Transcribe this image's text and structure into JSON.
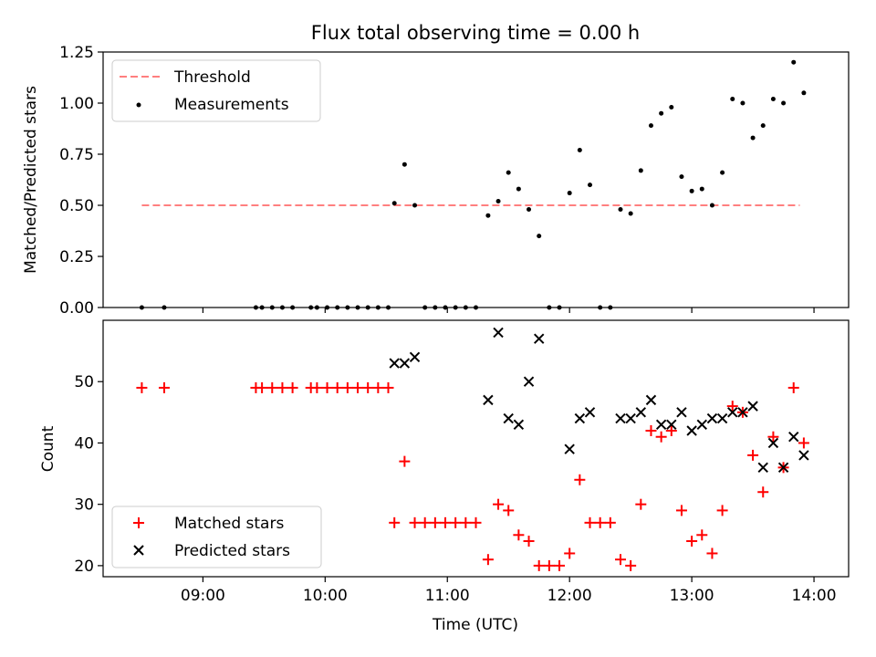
{
  "chart_data": [
    {
      "type": "scatter",
      "title": "Flux total observing time = 0.00 h",
      "xlabel": "",
      "ylabel": "Matched/Predicted stars",
      "ylim": [
        0,
        1.25
      ],
      "yticks": [
        "0.00",
        "0.25",
        "0.50",
        "0.75",
        "1.00",
        "1.25"
      ],
      "legend_position": "top-left",
      "threshold": {
        "name": "Threshold",
        "value": 0.5,
        "x_start": "08:30",
        "x_end": "13:53",
        "color": "#ff7f7f",
        "style": "dashed"
      },
      "series": [
        {
          "name": "Measurements",
          "color": "#000000",
          "marker": "dot",
          "points": [
            [
              "08:30",
              0.0
            ],
            [
              "08:41",
              0.0
            ],
            [
              "09:26",
              0.0
            ],
            [
              "09:29",
              0.0
            ],
            [
              "09:34",
              0.0
            ],
            [
              "09:39",
              0.0
            ],
            [
              "09:44",
              0.0
            ],
            [
              "09:53",
              0.0
            ],
            [
              "09:56",
              0.0
            ],
            [
              "10:01",
              0.0
            ],
            [
              "10:06",
              0.0
            ],
            [
              "10:11",
              0.0
            ],
            [
              "10:16",
              0.0
            ],
            [
              "10:21",
              0.0
            ],
            [
              "10:26",
              0.0
            ],
            [
              "10:31",
              0.0
            ],
            [
              "10:34",
              0.51
            ],
            [
              "10:39",
              0.7
            ],
            [
              "10:44",
              0.5
            ],
            [
              "10:49",
              0.0
            ],
            [
              "10:54",
              0.0
            ],
            [
              "10:59",
              0.0
            ],
            [
              "11:04",
              0.0
            ],
            [
              "11:09",
              0.0
            ],
            [
              "11:14",
              0.0
            ],
            [
              "11:20",
              0.45
            ],
            [
              "11:25",
              0.52
            ],
            [
              "11:30",
              0.66
            ],
            [
              "11:35",
              0.58
            ],
            [
              "11:40",
              0.48
            ],
            [
              "11:45",
              0.35
            ],
            [
              "11:50",
              0.0
            ],
            [
              "11:55",
              0.0
            ],
            [
              "12:00",
              0.56
            ],
            [
              "12:05",
              0.77
            ],
            [
              "12:10",
              0.6
            ],
            [
              "12:15",
              0.0
            ],
            [
              "12:20",
              0.0
            ],
            [
              "12:25",
              0.48
            ],
            [
              "12:30",
              0.46
            ],
            [
              "12:35",
              0.67
            ],
            [
              "12:40",
              0.89
            ],
            [
              "12:45",
              0.95
            ],
            [
              "12:50",
              0.98
            ],
            [
              "12:55",
              0.64
            ],
            [
              "13:00",
              0.57
            ],
            [
              "13:05",
              0.58
            ],
            [
              "13:10",
              0.5
            ],
            [
              "13:15",
              0.66
            ],
            [
              "13:20",
              1.02
            ],
            [
              "13:25",
              1.0
            ],
            [
              "13:30",
              0.83
            ],
            [
              "13:35",
              0.89
            ],
            [
              "13:40",
              1.02
            ],
            [
              "13:45",
              1.0
            ],
            [
              "13:50",
              1.2
            ],
            [
              "13:55",
              1.05
            ]
          ]
        }
      ]
    },
    {
      "type": "scatter",
      "title": "",
      "xlabel": "Time (UTC)",
      "ylabel": "Count",
      "ylim": [
        18.2,
        60.0
      ],
      "yticks": [
        "20",
        "30",
        "40",
        "50"
      ],
      "xlim": [
        "08:11",
        "14:17"
      ],
      "xticks": [
        "09:00",
        "10:00",
        "11:00",
        "12:00",
        "13:00",
        "14:00"
      ],
      "legend_position": "bottom-left",
      "series": [
        {
          "name": "Matched stars",
          "color": "#ff0000",
          "marker": "plus",
          "points": [
            [
              "08:30",
              49
            ],
            [
              "08:41",
              49
            ],
            [
              "09:26",
              49
            ],
            [
              "09:29",
              49
            ],
            [
              "09:34",
              49
            ],
            [
              "09:39",
              49
            ],
            [
              "09:44",
              49
            ],
            [
              "09:53",
              49
            ],
            [
              "09:56",
              49
            ],
            [
              "10:01",
              49
            ],
            [
              "10:06",
              49
            ],
            [
              "10:11",
              49
            ],
            [
              "10:16",
              49
            ],
            [
              "10:21",
              49
            ],
            [
              "10:26",
              49
            ],
            [
              "10:31",
              49
            ],
            [
              "10:34",
              27
            ],
            [
              "10:39",
              37
            ],
            [
              "10:44",
              27
            ],
            [
              "10:49",
              27
            ],
            [
              "10:54",
              27
            ],
            [
              "10:59",
              27
            ],
            [
              "11:04",
              27
            ],
            [
              "11:09",
              27
            ],
            [
              "11:14",
              27
            ],
            [
              "11:20",
              21
            ],
            [
              "11:25",
              30
            ],
            [
              "11:30",
              29
            ],
            [
              "11:35",
              25
            ],
            [
              "11:40",
              24
            ],
            [
              "11:45",
              20
            ],
            [
              "11:50",
              20
            ],
            [
              "11:55",
              20
            ],
            [
              "12:00",
              22
            ],
            [
              "12:05",
              34
            ],
            [
              "12:10",
              27
            ],
            [
              "12:15",
              27
            ],
            [
              "12:20",
              27
            ],
            [
              "12:25",
              21
            ],
            [
              "12:30",
              20
            ],
            [
              "12:35",
              30
            ],
            [
              "12:40",
              42
            ],
            [
              "12:45",
              41
            ],
            [
              "12:50",
              42
            ],
            [
              "12:55",
              29
            ],
            [
              "13:00",
              24
            ],
            [
              "13:05",
              25
            ],
            [
              "13:10",
              22
            ],
            [
              "13:15",
              29
            ],
            [
              "13:20",
              46
            ],
            [
              "13:25",
              45
            ],
            [
              "13:30",
              38
            ],
            [
              "13:35",
              32
            ],
            [
              "13:40",
              41
            ],
            [
              "13:45",
              36
            ],
            [
              "13:50",
              49
            ],
            [
              "13:55",
              40
            ]
          ]
        },
        {
          "name": "Predicted stars",
          "color": "#000000",
          "marker": "x",
          "points": [
            [
              "10:34",
              53
            ],
            [
              "10:39",
              53
            ],
            [
              "10:44",
              54
            ],
            [
              "11:20",
              47
            ],
            [
              "11:25",
              58
            ],
            [
              "11:30",
              44
            ],
            [
              "11:35",
              43
            ],
            [
              "11:40",
              50
            ],
            [
              "11:45",
              57
            ],
            [
              "12:00",
              39
            ],
            [
              "12:05",
              44
            ],
            [
              "12:10",
              45
            ],
            [
              "12:25",
              44
            ],
            [
              "12:30",
              44
            ],
            [
              "12:35",
              45
            ],
            [
              "12:40",
              47
            ],
            [
              "12:45",
              43
            ],
            [
              "12:50",
              43
            ],
            [
              "12:55",
              45
            ],
            [
              "13:00",
              42
            ],
            [
              "13:05",
              43
            ],
            [
              "13:10",
              44
            ],
            [
              "13:15",
              44
            ],
            [
              "13:20",
              45
            ],
            [
              "13:25",
              45
            ],
            [
              "13:30",
              46
            ],
            [
              "13:35",
              36
            ],
            [
              "13:40",
              40
            ],
            [
              "13:45",
              36
            ],
            [
              "13:50",
              41
            ],
            [
              "13:55",
              38
            ]
          ]
        }
      ]
    }
  ]
}
